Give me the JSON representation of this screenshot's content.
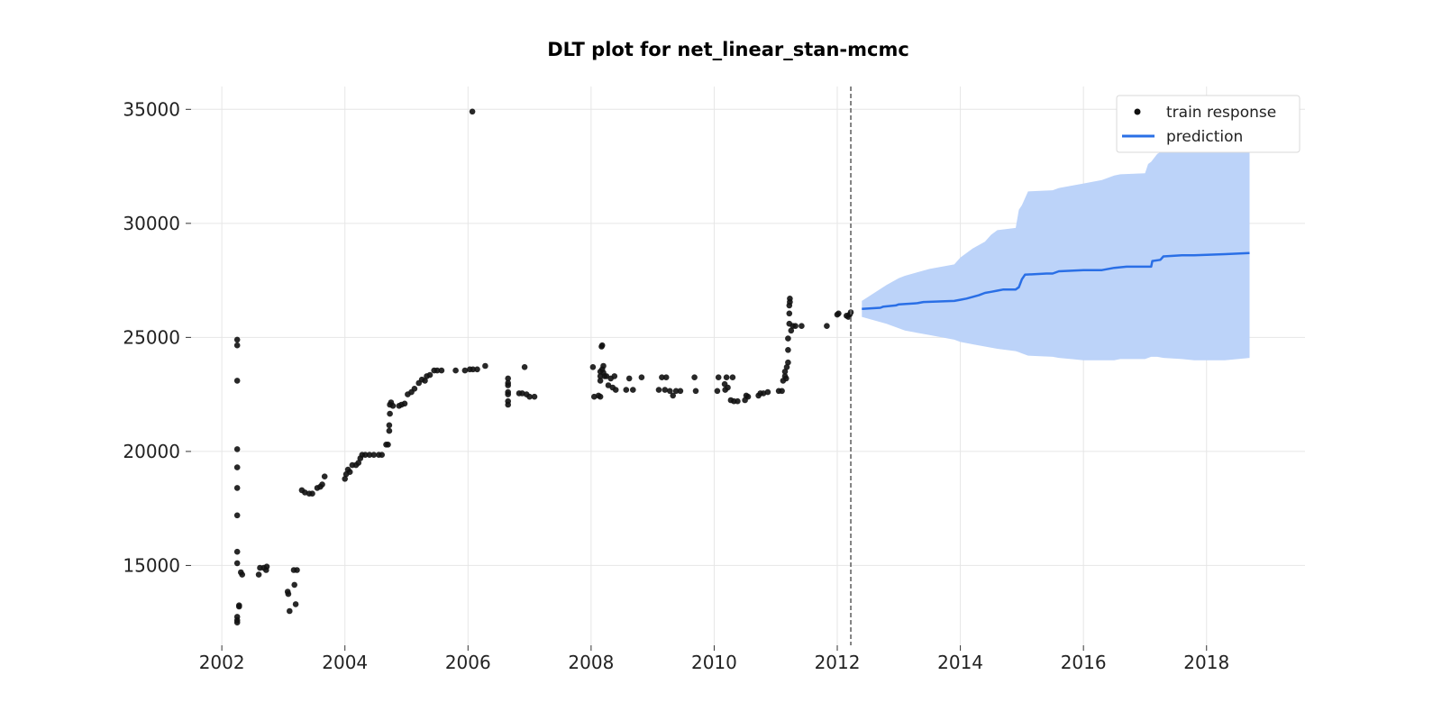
{
  "chart_data": {
    "type": "scatter",
    "title": "DLT plot for net_linear_stan-mcmc",
    "xlabel": "",
    "ylabel": "",
    "xlim": [
      2001.5,
      2019.6
    ],
    "ylim": [
      11500,
      36000
    ],
    "x_ticks": [
      2002,
      2004,
      2006,
      2008,
      2010,
      2012,
      2014,
      2016,
      2018
    ],
    "x_tick_labels": [
      "2002",
      "2004",
      "2006",
      "2008",
      "2010",
      "2012",
      "2014",
      "2016",
      "2018"
    ],
    "y_ticks": [
      15000,
      20000,
      25000,
      30000,
      35000
    ],
    "y_tick_labels": [
      "15000",
      "20000",
      "25000",
      "30000",
      "35000"
    ],
    "grid": true,
    "legend": {
      "placement": "top-right",
      "entries": [
        "train response",
        "prediction"
      ]
    },
    "vertical_marker_x": 2012.22,
    "colors": {
      "train_points": "#111111",
      "prediction_line": "#2a6fe6",
      "interval_fill": "#bcd3f9",
      "marker_line": "#666666"
    },
    "series": [
      {
        "name": "train response",
        "type": "scatter",
        "points": [
          [
            2002.25,
            24900
          ],
          [
            2002.25,
            24650
          ],
          [
            2002.25,
            23100
          ],
          [
            2002.25,
            20100
          ],
          [
            2002.25,
            19300
          ],
          [
            2002.25,
            18400
          ],
          [
            2002.25,
            17200
          ],
          [
            2002.25,
            15600
          ],
          [
            2002.25,
            15100
          ],
          [
            2002.25,
            12750
          ],
          [
            2002.25,
            12600
          ],
          [
            2002.25,
            12500
          ],
          [
            2002.28,
            13250
          ],
          [
            2002.28,
            13200
          ],
          [
            2002.31,
            14700
          ],
          [
            2002.33,
            14600
          ],
          [
            2002.6,
            14600
          ],
          [
            2002.62,
            14900
          ],
          [
            2002.68,
            14900
          ],
          [
            2002.72,
            14800
          ],
          [
            2002.73,
            14950
          ],
          [
            2003.07,
            13850
          ],
          [
            2003.08,
            13750
          ],
          [
            2003.1,
            13000
          ],
          [
            2003.17,
            14800
          ],
          [
            2003.18,
            14150
          ],
          [
            2003.2,
            13300
          ],
          [
            2003.22,
            14800
          ],
          [
            2003.3,
            18300
          ],
          [
            2003.35,
            18200
          ],
          [
            2003.42,
            18150
          ],
          [
            2003.47,
            18150
          ],
          [
            2003.55,
            18400
          ],
          [
            2003.6,
            18450
          ],
          [
            2003.63,
            18550
          ],
          [
            2003.67,
            18900
          ],
          [
            2004.0,
            18800
          ],
          [
            2004.02,
            19000
          ],
          [
            2004.05,
            19200
          ],
          [
            2004.08,
            19100
          ],
          [
            2004.12,
            19400
          ],
          [
            2004.18,
            19400
          ],
          [
            2004.22,
            19500
          ],
          [
            2004.25,
            19700
          ],
          [
            2004.28,
            19850
          ],
          [
            2004.33,
            19850
          ],
          [
            2004.4,
            19850
          ],
          [
            2004.47,
            19850
          ],
          [
            2004.55,
            19850
          ],
          [
            2004.6,
            19850
          ],
          [
            2004.67,
            20300
          ],
          [
            2004.7,
            20300
          ],
          [
            2004.72,
            20900
          ],
          [
            2004.72,
            21150
          ],
          [
            2004.73,
            21650
          ],
          [
            2004.73,
            22050
          ],
          [
            2004.75,
            22150
          ],
          [
            2004.78,
            22000
          ],
          [
            2004.88,
            22000
          ],
          [
            2004.92,
            22050
          ],
          [
            2004.97,
            22100
          ],
          [
            2005.02,
            22500
          ],
          [
            2005.08,
            22600
          ],
          [
            2005.13,
            22750
          ],
          [
            2005.2,
            23000
          ],
          [
            2005.25,
            23150
          ],
          [
            2005.3,
            23100
          ],
          [
            2005.33,
            23300
          ],
          [
            2005.38,
            23350
          ],
          [
            2005.45,
            23550
          ],
          [
            2005.5,
            23550
          ],
          [
            2005.57,
            23550
          ],
          [
            2005.8,
            23550
          ],
          [
            2005.95,
            23550
          ],
          [
            2006.03,
            23600
          ],
          [
            2006.08,
            23600
          ],
          [
            2006.15,
            23600
          ],
          [
            2006.28,
            23750
          ],
          [
            2006.07,
            34900
          ],
          [
            2006.65,
            23200
          ],
          [
            2006.65,
            23000
          ],
          [
            2006.65,
            22900
          ],
          [
            2006.65,
            22600
          ],
          [
            2006.65,
            22500
          ],
          [
            2006.65,
            22200
          ],
          [
            2006.65,
            22050
          ],
          [
            2006.83,
            22550
          ],
          [
            2006.88,
            22550
          ],
          [
            2006.92,
            23700
          ],
          [
            2006.95,
            22500
          ],
          [
            2007.0,
            22400
          ],
          [
            2007.08,
            22400
          ],
          [
            2008.03,
            23700
          ],
          [
            2008.05,
            22400
          ],
          [
            2008.12,
            22450
          ],
          [
            2008.15,
            22400
          ],
          [
            2008.15,
            23100
          ],
          [
            2008.15,
            23300
          ],
          [
            2008.15,
            23500
          ],
          [
            2008.17,
            24600
          ],
          [
            2008.18,
            24650
          ],
          [
            2008.18,
            23600
          ],
          [
            2008.2,
            23450
          ],
          [
            2008.2,
            23750
          ],
          [
            2008.22,
            23300
          ],
          [
            2008.25,
            23300
          ],
          [
            2008.28,
            22900
          ],
          [
            2008.32,
            23200
          ],
          [
            2008.35,
            22800
          ],
          [
            2008.38,
            23300
          ],
          [
            2008.4,
            22700
          ],
          [
            2008.57,
            22700
          ],
          [
            2008.62,
            23200
          ],
          [
            2008.68,
            22700
          ],
          [
            2008.82,
            23250
          ],
          [
            2009.1,
            22700
          ],
          [
            2009.15,
            23250
          ],
          [
            2009.2,
            22700
          ],
          [
            2009.22,
            23250
          ],
          [
            2009.28,
            22650
          ],
          [
            2009.33,
            22450
          ],
          [
            2009.38,
            22650
          ],
          [
            2009.45,
            22650
          ],
          [
            2009.68,
            23250
          ],
          [
            2009.7,
            22650
          ],
          [
            2010.05,
            22650
          ],
          [
            2010.07,
            23250
          ],
          [
            2010.17,
            22950
          ],
          [
            2010.18,
            22700
          ],
          [
            2010.2,
            23250
          ],
          [
            2010.22,
            22800
          ],
          [
            2010.27,
            22250
          ],
          [
            2010.3,
            23250
          ],
          [
            2010.32,
            22200
          ],
          [
            2010.38,
            22200
          ],
          [
            2010.5,
            22250
          ],
          [
            2010.52,
            22450
          ],
          [
            2010.55,
            22400
          ],
          [
            2010.72,
            22450
          ],
          [
            2010.75,
            22550
          ],
          [
            2010.8,
            22550
          ],
          [
            2010.87,
            22600
          ],
          [
            2011.05,
            22650
          ],
          [
            2011.1,
            22650
          ],
          [
            2011.12,
            23100
          ],
          [
            2011.15,
            23300
          ],
          [
            2011.15,
            23500
          ],
          [
            2011.17,
            23200
          ],
          [
            2011.18,
            23700
          ],
          [
            2011.2,
            23900
          ],
          [
            2011.2,
            24450
          ],
          [
            2011.2,
            24950
          ],
          [
            2011.22,
            25600
          ],
          [
            2011.22,
            26050
          ],
          [
            2011.22,
            26400
          ],
          [
            2011.23,
            26550
          ],
          [
            2011.23,
            26700
          ],
          [
            2011.25,
            25300
          ],
          [
            2011.28,
            25500
          ],
          [
            2011.32,
            25500
          ],
          [
            2011.42,
            25500
          ],
          [
            2011.83,
            25500
          ],
          [
            2012.0,
            26000
          ],
          [
            2012.02,
            26050
          ],
          [
            2012.15,
            25950
          ],
          [
            2012.18,
            25900
          ],
          [
            2012.2,
            26000
          ],
          [
            2012.22,
            26100
          ]
        ]
      },
      {
        "name": "prediction",
        "type": "line",
        "points": [
          [
            2012.4,
            26250
          ],
          [
            2012.7,
            26300
          ],
          [
            2012.75,
            26350
          ],
          [
            2012.95,
            26400
          ],
          [
            2013.0,
            26450
          ],
          [
            2013.3,
            26500
          ],
          [
            2013.4,
            26550
          ],
          [
            2013.6,
            26570
          ],
          [
            2013.9,
            26600
          ],
          [
            2014.0,
            26650
          ],
          [
            2014.1,
            26700
          ],
          [
            2014.3,
            26850
          ],
          [
            2014.4,
            26950
          ],
          [
            2014.5,
            27000
          ],
          [
            2014.6,
            27050
          ],
          [
            2014.7,
            27100
          ],
          [
            2014.9,
            27100
          ],
          [
            2014.95,
            27200
          ],
          [
            2015.0,
            27550
          ],
          [
            2015.05,
            27750
          ],
          [
            2015.4,
            27800
          ],
          [
            2015.5,
            27800
          ],
          [
            2015.6,
            27900
          ],
          [
            2016.0,
            27950
          ],
          [
            2016.3,
            27950
          ],
          [
            2016.5,
            28050
          ],
          [
            2016.7,
            28100
          ],
          [
            2017.1,
            28100
          ],
          [
            2017.12,
            28350
          ],
          [
            2017.25,
            28400
          ],
          [
            2017.3,
            28550
          ],
          [
            2017.6,
            28600
          ],
          [
            2017.8,
            28600
          ],
          [
            2018.3,
            28650
          ],
          [
            2018.7,
            28700
          ]
        ]
      }
    ],
    "prediction_interval": {
      "x": [
        2012.4,
        2012.8,
        2013.0,
        2013.1,
        2013.5,
        2013.9,
        2014.0,
        2014.2,
        2014.4,
        2014.5,
        2014.6,
        2014.9,
        2014.95,
        2015.0,
        2015.1,
        2015.5,
        2015.6,
        2015.8,
        2016.0,
        2016.3,
        2016.5,
        2016.6,
        2017.0,
        2017.05,
        2017.1,
        2017.2,
        2017.3,
        2017.6,
        2017.8,
        2018.0,
        2018.3,
        2018.7
      ],
      "lower": [
        25900,
        25600,
        25400,
        25300,
        25100,
        24900,
        24800,
        24700,
        24600,
        24550,
        24500,
        24400,
        24350,
        24300,
        24200,
        24150,
        24100,
        24050,
        24000,
        24000,
        24000,
        24050,
        24050,
        24100,
        24150,
        24150,
        24100,
        24050,
        24000,
        24000,
        24000,
        24100
      ],
      "upper": [
        26600,
        27300,
        27600,
        27700,
        28000,
        28200,
        28500,
        28900,
        29200,
        29500,
        29700,
        29800,
        30600,
        30800,
        31400,
        31450,
        31550,
        31650,
        31750,
        31900,
        32100,
        32150,
        32200,
        32600,
        32700,
        33050,
        33200,
        33250,
        33200,
        33200,
        33200,
        33250
      ]
    }
  }
}
